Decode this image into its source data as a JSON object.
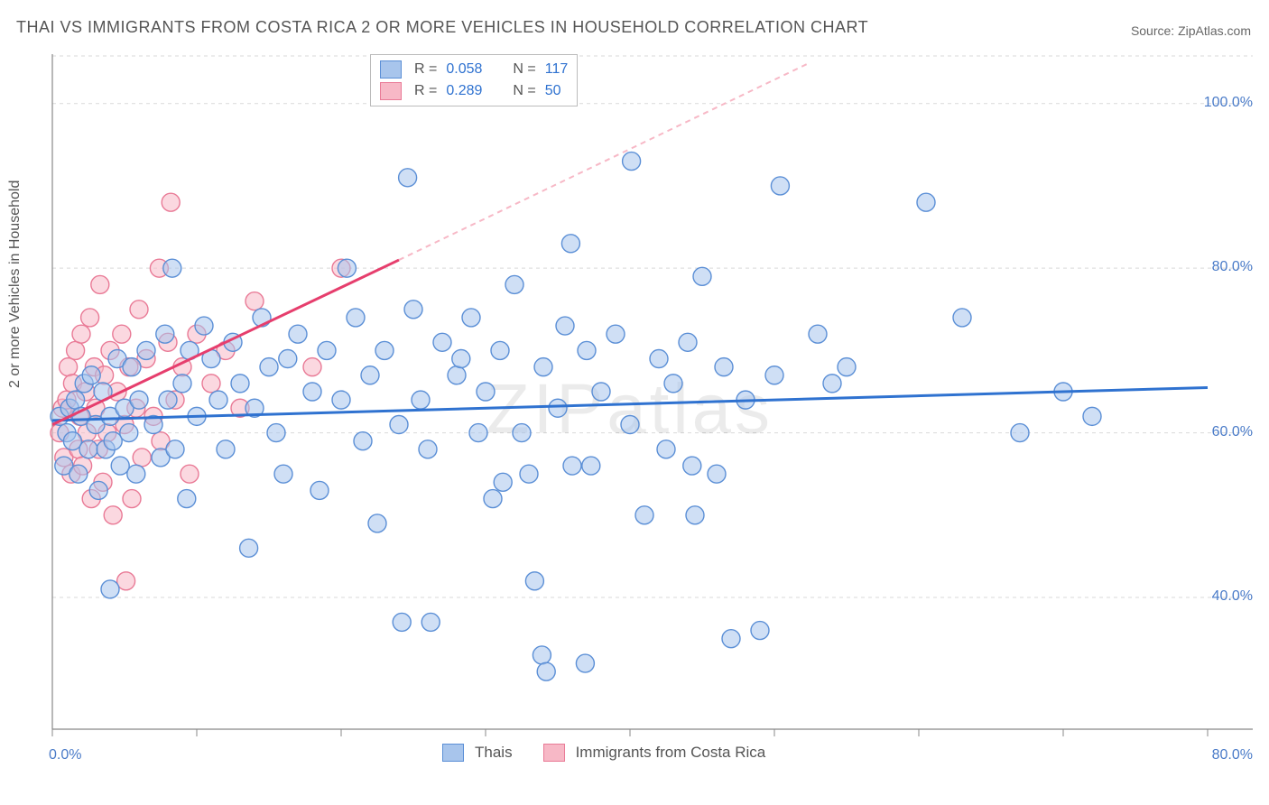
{
  "title": "THAI VS IMMIGRANTS FROM COSTA RICA 2 OR MORE VEHICLES IN HOUSEHOLD CORRELATION CHART",
  "source_prefix": "Source: ",
  "source_name": "ZipAtlas.com",
  "y_axis_label": "2 or more Vehicles in Household",
  "watermark": "ZIPatlas",
  "chart": {
    "type": "scatter",
    "background_color": "#ffffff",
    "grid_color": "#d9d9d9",
    "axis_color": "#888888",
    "xlim": [
      0,
      80
    ],
    "ylim": [
      24,
      106
    ],
    "x_ticks": [
      0,
      10,
      20,
      30,
      40,
      50,
      60,
      70,
      80
    ],
    "x_tick_labels_shown": {
      "0": "0.0%",
      "80": "80.0%"
    },
    "y_ticks": [
      40,
      60,
      80,
      100
    ],
    "y_tick_labels": [
      "40.0%",
      "60.0%",
      "80.0%",
      "100.0%"
    ],
    "tick_label_color": "#4a7bc8",
    "series": [
      {
        "name": "Thais",
        "color_fill": "#a8c5ec",
        "color_stroke": "#5b8fd6",
        "marker_radius": 10,
        "fill_opacity": 0.55,
        "trend": {
          "x1": 0,
          "y1": 61.5,
          "x2": 80,
          "y2": 65.5,
          "color": "#2f72d0",
          "width": 3,
          "dash": null
        },
        "R": "0.058",
        "N": "117",
        "points": [
          [
            0.5,
            62
          ],
          [
            0.8,
            56
          ],
          [
            1,
            60
          ],
          [
            1.2,
            63
          ],
          [
            1.4,
            59
          ],
          [
            1.6,
            64
          ],
          [
            1.8,
            55
          ],
          [
            2,
            62
          ],
          [
            2.2,
            66
          ],
          [
            2.5,
            58
          ],
          [
            2.7,
            67
          ],
          [
            3,
            61
          ],
          [
            3.2,
            53
          ],
          [
            3.5,
            65
          ],
          [
            3.7,
            58
          ],
          [
            4,
            41
          ],
          [
            4,
            62
          ],
          [
            4.2,
            59
          ],
          [
            4.5,
            69
          ],
          [
            4.7,
            56
          ],
          [
            5,
            63
          ],
          [
            5.3,
            60
          ],
          [
            5.5,
            68
          ],
          [
            5.8,
            55
          ],
          [
            6,
            64
          ],
          [
            6.5,
            70
          ],
          [
            7,
            61
          ],
          [
            7.5,
            57
          ],
          [
            7.8,
            72
          ],
          [
            8,
            64
          ],
          [
            8.3,
            80
          ],
          [
            8.5,
            58
          ],
          [
            9,
            66
          ],
          [
            9.3,
            52
          ],
          [
            9.5,
            70
          ],
          [
            10,
            62
          ],
          [
            10.5,
            73
          ],
          [
            11,
            69
          ],
          [
            11.5,
            64
          ],
          [
            12,
            58
          ],
          [
            12.5,
            71
          ],
          [
            13,
            66
          ],
          [
            13.6,
            46
          ],
          [
            14,
            63
          ],
          [
            14.5,
            74
          ],
          [
            15,
            68
          ],
          [
            15.5,
            60
          ],
          [
            16,
            55
          ],
          [
            16.3,
            69
          ],
          [
            17,
            72
          ],
          [
            18,
            65
          ],
          [
            18.5,
            53
          ],
          [
            19,
            70
          ],
          [
            20,
            64
          ],
          [
            20.4,
            80
          ],
          [
            21,
            74
          ],
          [
            21.5,
            59
          ],
          [
            22,
            67
          ],
          [
            22.5,
            49
          ],
          [
            23,
            70
          ],
          [
            24,
            61
          ],
          [
            24.2,
            37
          ],
          [
            24.6,
            91
          ],
          [
            25,
            75
          ],
          [
            25.5,
            64
          ],
          [
            26,
            58
          ],
          [
            26.2,
            37
          ],
          [
            27,
            71
          ],
          [
            28,
            67
          ],
          [
            28.3,
            69
          ],
          [
            29,
            74
          ],
          [
            29.5,
            60
          ],
          [
            30,
            65
          ],
          [
            30.5,
            52
          ],
          [
            31,
            70
          ],
          [
            31.2,
            54
          ],
          [
            32,
            78
          ],
          [
            32.5,
            60
          ],
          [
            33,
            55
          ],
          [
            33.4,
            42
          ],
          [
            33.9,
            33
          ],
          [
            34,
            68
          ],
          [
            34.2,
            31
          ],
          [
            35,
            63
          ],
          [
            35.5,
            73
          ],
          [
            35.9,
            83
          ],
          [
            36,
            56
          ],
          [
            36.9,
            32
          ],
          [
            37,
            70
          ],
          [
            37.3,
            56
          ],
          [
            38,
            65
          ],
          [
            39,
            72
          ],
          [
            40,
            61
          ],
          [
            40.1,
            93
          ],
          [
            41,
            50
          ],
          [
            42,
            69
          ],
          [
            42.5,
            58
          ],
          [
            43,
            66
          ],
          [
            44,
            71
          ],
          [
            44.3,
            56
          ],
          [
            44.5,
            50
          ],
          [
            45,
            79
          ],
          [
            46,
            55
          ],
          [
            46.5,
            68
          ],
          [
            47,
            35
          ],
          [
            48,
            64
          ],
          [
            49,
            36
          ],
          [
            50,
            67
          ],
          [
            50.4,
            90
          ],
          [
            53,
            72
          ],
          [
            54,
            66
          ],
          [
            55,
            68
          ],
          [
            60.5,
            88
          ],
          [
            63,
            74
          ],
          [
            67,
            60
          ],
          [
            70,
            65
          ],
          [
            72,
            62
          ]
        ]
      },
      {
        "name": "Immigrants from Costa Rica",
        "color_fill": "#f7b8c6",
        "color_stroke": "#e97a96",
        "marker_radius": 10,
        "fill_opacity": 0.55,
        "trend_solid": {
          "x1": 0,
          "y1": 61,
          "x2": 24,
          "y2": 81,
          "color": "#e63e6d",
          "width": 3
        },
        "trend_dash": {
          "x1": 24,
          "y1": 81,
          "x2": 52.5,
          "y2": 105,
          "color": "#f7b8c6",
          "width": 2,
          "dash": "6,5"
        },
        "R": "0.289",
        "N": "50",
        "points": [
          [
            0.5,
            60
          ],
          [
            0.7,
            63
          ],
          [
            0.8,
            57
          ],
          [
            1,
            64
          ],
          [
            1.1,
            68
          ],
          [
            1.3,
            55
          ],
          [
            1.4,
            66
          ],
          [
            1.6,
            70
          ],
          [
            1.8,
            58
          ],
          [
            1.9,
            62
          ],
          [
            2,
            72
          ],
          [
            2.1,
            56
          ],
          [
            2.3,
            65
          ],
          [
            2.4,
            60
          ],
          [
            2.6,
            74
          ],
          [
            2.7,
            52
          ],
          [
            2.9,
            68
          ],
          [
            3,
            63
          ],
          [
            3.2,
            58
          ],
          [
            3.3,
            78
          ],
          [
            3.5,
            54
          ],
          [
            3.6,
            67
          ],
          [
            3.8,
            60
          ],
          [
            4,
            70
          ],
          [
            4.2,
            50
          ],
          [
            4.5,
            65
          ],
          [
            4.8,
            72
          ],
          [
            5,
            61
          ],
          [
            5.1,
            42
          ],
          [
            5.3,
            68
          ],
          [
            5.5,
            52
          ],
          [
            5.8,
            63
          ],
          [
            6,
            75
          ],
          [
            6.2,
            57
          ],
          [
            6.5,
            69
          ],
          [
            7,
            62
          ],
          [
            7.4,
            80
          ],
          [
            7.5,
            59
          ],
          [
            8,
            71
          ],
          [
            8.2,
            88
          ],
          [
            8.5,
            64
          ],
          [
            9,
            68
          ],
          [
            9.5,
            55
          ],
          [
            10,
            72
          ],
          [
            11,
            66
          ],
          [
            12,
            70
          ],
          [
            13,
            63
          ],
          [
            14,
            76
          ],
          [
            18,
            68
          ],
          [
            20,
            80
          ]
        ]
      }
    ]
  },
  "legend_top": {
    "R_label": "R =",
    "N_label": "N ="
  },
  "legend_bottom": {
    "series1": "Thais",
    "series2": "Immigrants from Costa Rica"
  }
}
